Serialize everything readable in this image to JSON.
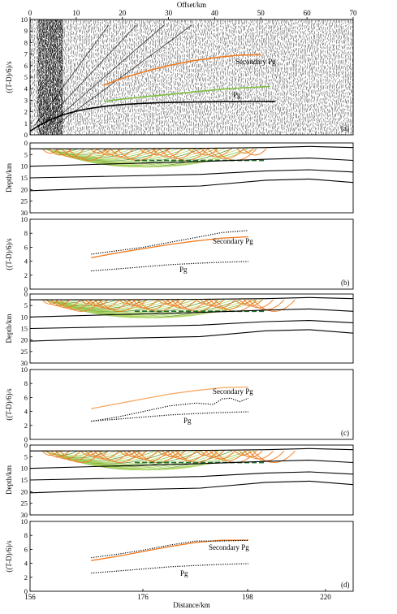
{
  "figure": {
    "top_axis": {
      "title": "Offset/km",
      "ticks": [
        "0",
        "10",
        "20",
        "30",
        "40",
        "50",
        "60",
        "70"
      ]
    },
    "bottom_axis": {
      "title": "Distance/km",
      "ticks": [
        "156",
        "176",
        "198",
        "220"
      ]
    },
    "colors": {
      "orange": "#f07a1e",
      "light_orange": "#f6a860",
      "green": "#7fbf3f",
      "dark_green": "#1f6f2c",
      "black": "#000000"
    }
  },
  "chart_data": [
    {
      "type": "image",
      "panel": "(a)",
      "ylabel": "((T-D)/6)/s",
      "ylim": [
        0,
        10
      ],
      "yticks": [
        "0",
        "1",
        "2",
        "3",
        "4",
        "5",
        "6",
        "7",
        "8",
        "9",
        "10"
      ],
      "xlim": [
        0,
        70
      ],
      "annotations": [
        "Secondary Pg",
        "Pg"
      ],
      "series": [
        {
          "name": "Secondary Pg",
          "color": "#f07a1e",
          "x": [
            16,
            20,
            25,
            30,
            35,
            40,
            45,
            50
          ],
          "y": [
            4.3,
            4.9,
            5.5,
            6.0,
            6.4,
            6.7,
            6.9,
            6.95
          ]
        },
        {
          "name": "Pg",
          "color": "#7fbf3f",
          "x": [
            16,
            20,
            25,
            30,
            35,
            40,
            45,
            52
          ],
          "y": [
            2.9,
            3.1,
            3.3,
            3.5,
            3.7,
            3.9,
            4.05,
            4.2
          ]
        }
      ]
    },
    {
      "type": "line",
      "panel": "model-1",
      "ylabel": "Depth/km",
      "ylim": [
        0,
        30
      ],
      "yticks": [
        "0",
        "5",
        "10",
        "15",
        "20",
        "25",
        "30"
      ],
      "xlim": [
        156,
        230
      ],
      "interfaces": [
        {
          "x": [
            156,
            175,
            195,
            210,
            220,
            230
          ],
          "y": [
            2.5,
            2.5,
            2.3,
            2.0,
            1.5,
            2.0
          ]
        },
        {
          "x": [
            156,
            175,
            195,
            210,
            220,
            230
          ],
          "y": [
            10.0,
            9.0,
            8.0,
            7.0,
            6.5,
            7.5
          ]
        },
        {
          "x": [
            156,
            175,
            195,
            210,
            220,
            230
          ],
          "y": [
            15.0,
            14.3,
            13.5,
            12.0,
            11.5,
            12.5
          ]
        },
        {
          "x": [
            156,
            175,
            195,
            210,
            220,
            230
          ],
          "y": [
            20.5,
            19.3,
            18.5,
            16.0,
            15.5,
            17.0
          ]
        }
      ]
    },
    {
      "type": "line",
      "panel": "(b)",
      "ylabel": "((T-D)/6)/s",
      "ylim": [
        0,
        10
      ],
      "yticks": [
        "0",
        "2",
        "4",
        "6",
        "8",
        "10"
      ],
      "xlim": [
        156,
        230
      ],
      "annotations": [
        "Secondary Pg",
        "Pg"
      ],
      "series": [
        {
          "name": "Secondary Pg",
          "color": "#f07a1e",
          "x": [
            170,
            176,
            182,
            188,
            194,
            200,
            206
          ],
          "y": [
            4.5,
            5.2,
            5.8,
            6.4,
            6.9,
            7.3,
            7.5
          ]
        },
        {
          "name": "Secondary Pg",
          "color": "#000000",
          "x": [
            170,
            176,
            182,
            188,
            194,
            200,
            206
          ],
          "y": [
            5.0,
            5.5,
            6.0,
            6.7,
            7.4,
            8.1,
            8.4
          ]
        },
        {
          "name": "Pg",
          "color": "#000000",
          "x": [
            170,
            176,
            182,
            188,
            194,
            200,
            206
          ],
          "y": [
            2.6,
            2.9,
            3.2,
            3.5,
            3.7,
            3.85,
            3.95
          ]
        }
      ]
    },
    {
      "type": "line",
      "panel": "model-2",
      "ylabel": "Depth/km",
      "ylim": [
        0,
        30
      ],
      "yticks": [
        "0",
        "5",
        "10",
        "15",
        "20",
        "25",
        "30"
      ],
      "xlim": [
        156,
        230
      ]
    },
    {
      "type": "line",
      "panel": "(c)",
      "ylabel": "((T-D)/6)/s",
      "ylim": [
        0,
        10
      ],
      "yticks": [
        "0",
        "2",
        "4",
        "6",
        "8",
        "10"
      ],
      "xlim": [
        156,
        230
      ],
      "annotations": [
        "Secondary Pg",
        "Pg"
      ],
      "series": [
        {
          "name": "Secondary Pg",
          "color": "#f6a860",
          "x": [
            170,
            176,
            182,
            188,
            194,
            200,
            206
          ],
          "y": [
            4.4,
            5.1,
            5.8,
            6.5,
            7.0,
            7.4,
            7.5
          ]
        },
        {
          "name": "Secondary Pg",
          "color": "#000000",
          "x": [
            170,
            176,
            182,
            188,
            194,
            198,
            200,
            202,
            204,
            206
          ],
          "y": [
            2.6,
            3.2,
            4.0,
            4.8,
            5.2,
            5.0,
            5.8,
            5.9,
            5.4,
            5.9
          ]
        },
        {
          "name": "Pg",
          "color": "#000000",
          "x": [
            170,
            176,
            182,
            188,
            194,
            200,
            206
          ],
          "y": [
            2.6,
            2.9,
            3.2,
            3.5,
            3.7,
            3.85,
            3.95
          ]
        }
      ]
    },
    {
      "type": "line",
      "panel": "model-3",
      "ylabel": "Depth/km",
      "ylim": [
        0,
        30
      ],
      "yticks": [
        "0",
        "5",
        "10",
        "15",
        "20",
        "25",
        "30"
      ],
      "xlim": [
        156,
        230
      ]
    },
    {
      "type": "line",
      "panel": "(d)",
      "ylabel": "((T-D)/6)/s",
      "ylim": [
        0,
        10
      ],
      "yticks": [
        "0",
        "2",
        "4",
        "6",
        "8",
        "10"
      ],
      "xlim": [
        156,
        230
      ],
      "annotations": [
        "Secondary Pg",
        "Pg"
      ],
      "series": [
        {
          "name": "Secondary Pg",
          "color": "#f07a1e",
          "x": [
            170,
            176,
            182,
            188,
            194,
            200,
            206
          ],
          "y": [
            4.4,
            5.0,
            5.7,
            6.4,
            7.0,
            7.3,
            7.3
          ]
        },
        {
          "name": "Secondary Pg",
          "color": "#000000",
          "x": [
            170,
            176,
            182,
            188,
            194,
            200,
            206
          ],
          "y": [
            4.8,
            5.3,
            5.9,
            6.6,
            7.2,
            7.2,
            7.3
          ]
        },
        {
          "name": "Pg",
          "color": "#000000",
          "x": [
            170,
            176,
            182,
            188,
            194,
            200,
            206
          ],
          "y": [
            2.6,
            2.9,
            3.2,
            3.5,
            3.7,
            3.85,
            3.95
          ]
        }
      ]
    }
  ]
}
